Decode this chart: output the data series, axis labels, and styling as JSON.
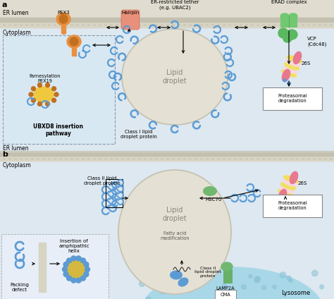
{
  "panel_a_bg": "#dde8f0",
  "panel_b_bg": "#dde8f0",
  "er_membrane_light": "#d8d4c4",
  "er_membrane_dark": "#c4c0b0",
  "ld_fill": "#e4e0d4",
  "ld_border": "#c4c0b0",
  "lyso_fill": "#a8d8e8",
  "lyso_dots": "#88c0d4",
  "blue": "#5b9bd5",
  "blue_dark": "#3a78b0",
  "green_erad": "#6ab86a",
  "green_lamp": "#70b870",
  "pink_26s": "#e87890",
  "yellow_26s": "#f0e060",
  "orange_pex3": "#e89040",
  "orange_dark": "#c07020",
  "yellow_pex19": "#f0c840",
  "salmon_hairpin": "#e8907a",
  "bg": "#f0f0f0",
  "label_a": "a",
  "label_b": "b",
  "label_er_lumen": "ER lumen",
  "label_cytoplasm": "Cytoplasm",
  "label_pex3": "PEX3",
  "label_hairpin": "Hairpin",
  "label_er_tether": "ER-restricted tether\n(e.g. UBAC2)",
  "label_erad": "ERAD complex",
  "label_vcp": "VCP\n(Cdc48)",
  "label_26s_a": "26S",
  "label_proteasomal_a": "Proteasomal\ndegradation",
  "label_farnesylation": "Farnesylation\nPEX19",
  "label_ubxd8": "UBXD8 insertion\npathway",
  "label_class1": "Class I lipid\ndroplet protein",
  "label_lipid_droplet_a": "Lipid\ndroplet",
  "label_er_lumen_b": "ER lumen",
  "label_cytoplasm_b": "Cytoplasm",
  "label_class2_top": "Class II lipid\ndroplet protein",
  "label_lipid_droplet_b": "Lipid\ndroplet",
  "label_fatty_acid": "Fatty acid\nmodification",
  "label_class2_bottom": "Class II\nlipid droplet\nprotein",
  "label_hsc70": "HSC70",
  "label_26s_b": "26S",
  "label_proteasomal_b": "Proteasomal\ndegradation",
  "label_lamp2a": "LAMP2A",
  "label_cma": "CMA",
  "label_lysosome": "Lysosome",
  "label_packing": "Packing\ndefect",
  "label_insertion": "Insertion of\namphipathic\nhelix"
}
